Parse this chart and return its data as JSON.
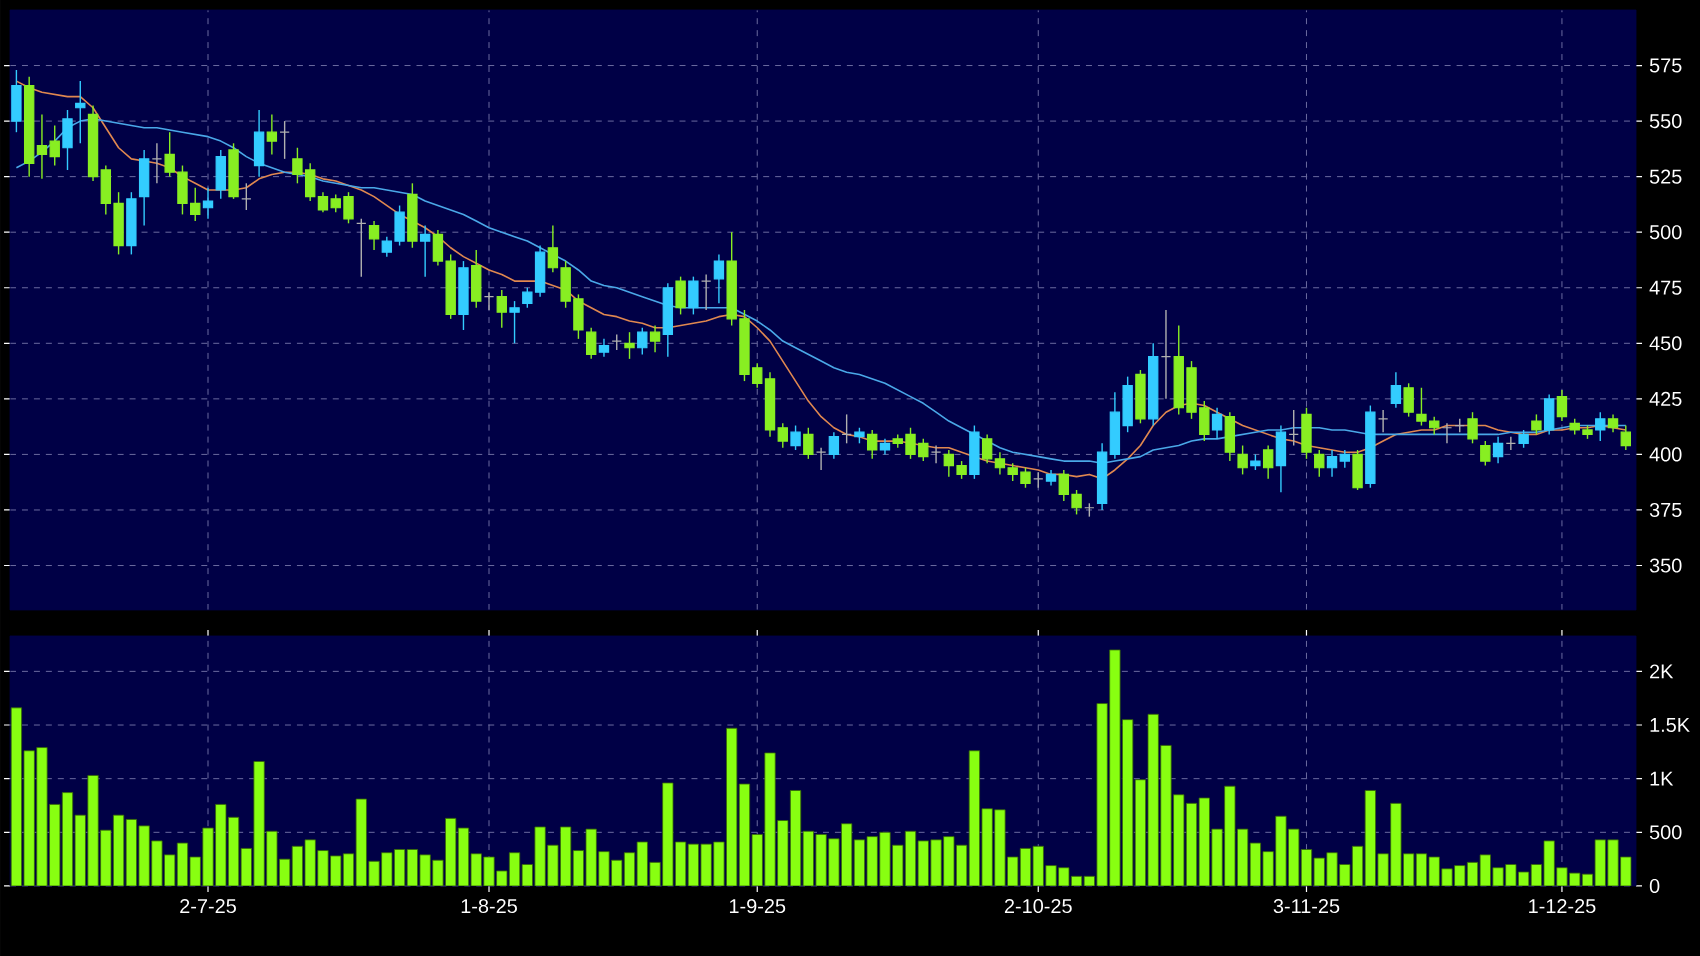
{
  "chart_data": [
    {
      "type": "candlestick",
      "tick_labels": "y",
      "grid": true,
      "ylim": [
        330,
        600
      ],
      "yticks": [
        350,
        375,
        400,
        425,
        450,
        475,
        500,
        525,
        550,
        575
      ],
      "categories": [
        null,
        null,
        null,
        null,
        null,
        null,
        null,
        null,
        null,
        null,
        null,
        null,
        null,
        null,
        null,
        null,
        null,
        null,
        null,
        null,
        null,
        null,
        null,
        null,
        null,
        null,
        null,
        null,
        null,
        null,
        null,
        null,
        null,
        null,
        null,
        null,
        null,
        null,
        null,
        null,
        null,
        null,
        null,
        null,
        null,
        null,
        null,
        null,
        null,
        null,
        null,
        null,
        null,
        null,
        null,
        null,
        null,
        null,
        null,
        null,
        null,
        null,
        null,
        null,
        null,
        null,
        null,
        null,
        null,
        null,
        null,
        null,
        null,
        null,
        null,
        null,
        null,
        null,
        null,
        null,
        null,
        null,
        null,
        null,
        null,
        null,
        null,
        null,
        null,
        null,
        null,
        null,
        null,
        null,
        null,
        null,
        null,
        null,
        null,
        null,
        null,
        null,
        null,
        null,
        null,
        null,
        null,
        null,
        null,
        null,
        null,
        null,
        null,
        null,
        null,
        null,
        null,
        null,
        null,
        null,
        null,
        null,
        null,
        null,
        null,
        null,
        null
      ],
      "ohlc": [
        [
          550,
          573,
          545,
          566
        ],
        [
          566,
          570,
          525,
          531
        ],
        [
          539,
          553,
          524,
          535
        ],
        [
          541,
          548,
          530,
          534
        ],
        [
          538,
          555,
          528,
          551
        ],
        [
          556,
          568,
          540,
          558
        ],
        [
          553,
          557,
          523,
          525
        ],
        [
          528,
          530,
          508,
          513
        ],
        [
          513,
          518,
          490,
          494
        ],
        [
          494,
          518,
          490,
          515
        ],
        [
          516,
          537,
          503,
          533
        ],
        [
          533,
          540,
          522,
          533
        ],
        [
          535,
          545,
          525,
          527
        ],
        [
          527,
          530,
          508,
          513
        ],
        [
          513,
          520,
          505,
          508
        ],
        [
          511,
          520,
          506,
          514
        ],
        [
          519,
          537,
          515,
          534
        ],
        [
          537,
          540,
          515,
          516
        ],
        [
          515,
          522,
          510,
          515
        ],
        [
          530,
          555,
          525,
          545
        ],
        [
          545,
          553,
          535,
          541
        ],
        [
          545,
          550,
          533,
          545
        ],
        [
          533,
          538,
          522,
          526
        ],
        [
          528,
          531,
          514,
          516
        ],
        [
          516,
          518,
          509,
          510
        ],
        [
          515,
          517,
          509,
          511
        ],
        [
          516,
          518,
          504,
          506
        ],
        [
          504,
          506,
          480,
          504
        ],
        [
          503,
          505,
          492,
          497
        ],
        [
          491,
          498,
          489,
          496
        ],
        [
          496,
          512,
          494,
          509
        ],
        [
          517,
          522,
          493,
          496
        ],
        [
          496,
          503,
          480,
          499
        ],
        [
          499,
          501,
          485,
          487
        ],
        [
          487,
          490,
          461,
          463
        ],
        [
          463,
          487,
          456,
          484
        ],
        [
          485,
          492,
          466,
          469
        ],
        [
          471,
          473,
          465,
          471
        ],
        [
          471,
          474,
          457,
          464
        ],
        [
          464,
          469,
          450,
          466
        ],
        [
          468,
          475,
          466,
          473
        ],
        [
          473,
          494,
          471,
          491
        ],
        [
          493,
          503,
          482,
          484
        ],
        [
          484,
          487,
          466,
          469
        ],
        [
          470,
          472,
          452,
          456
        ],
        [
          455,
          457,
          443,
          445
        ],
        [
          446,
          452,
          444,
          449
        ],
        [
          451,
          454,
          447,
          451
        ],
        [
          450,
          455,
          443,
          448
        ],
        [
          448,
          457,
          445,
          455
        ],
        [
          455,
          458,
          446,
          451
        ],
        [
          454,
          477,
          444,
          475
        ],
        [
          478,
          480,
          463,
          466
        ],
        [
          466,
          480,
          463,
          478
        ],
        [
          478,
          481,
          465,
          478
        ],
        [
          479,
          490,
          468,
          487
        ],
        [
          487,
          500,
          458,
          461
        ],
        [
          461,
          465,
          433,
          436
        ],
        [
          439,
          441,
          430,
          432
        ],
        [
          434,
          437,
          408,
          411
        ],
        [
          412,
          414,
          403,
          406
        ],
        [
          404,
          413,
          402,
          410
        ],
        [
          409,
          412,
          398,
          400
        ],
        [
          401,
          403,
          393,
          401
        ],
        [
          400,
          410,
          398,
          408
        ],
        [
          409,
          418,
          405,
          409
        ],
        [
          408,
          412,
          405,
          410
        ],
        [
          409,
          411,
          398,
          402
        ],
        [
          402,
          407,
          400,
          405
        ],
        [
          407,
          409,
          403,
          405
        ],
        [
          409,
          412,
          398,
          400
        ],
        [
          405,
          407,
          397,
          399
        ],
        [
          401,
          404,
          396,
          401
        ],
        [
          400,
          402,
          390,
          395
        ],
        [
          395,
          397,
          389,
          391
        ],
        [
          391,
          413,
          389,
          410
        ],
        [
          407,
          409,
          396,
          398
        ],
        [
          398,
          401,
          391,
          394
        ],
        [
          394,
          396,
          388,
          391
        ],
        [
          392,
          394,
          385,
          387
        ],
        [
          389,
          392,
          385,
          389
        ],
        [
          388,
          393,
          386,
          391
        ],
        [
          391,
          393,
          379,
          382
        ],
        [
          382,
          384,
          373,
          376
        ],
        [
          376,
          378,
          372,
          376
        ],
        [
          378,
          405,
          375,
          401
        ],
        [
          400,
          428,
          398,
          419
        ],
        [
          413,
          435,
          410,
          431
        ],
        [
          436,
          438,
          414,
          416
        ],
        [
          416,
          450,
          413,
          444
        ],
        [
          444,
          465,
          425,
          444
        ],
        [
          444,
          458,
          418,
          421
        ],
        [
          439,
          442,
          416,
          419
        ],
        [
          421,
          424,
          406,
          409
        ],
        [
          411,
          421,
          407,
          418
        ],
        [
          417,
          419,
          397,
          401
        ],
        [
          400,
          404,
          391,
          394
        ],
        [
          395,
          400,
          393,
          397
        ],
        [
          402,
          404,
          389,
          394
        ],
        [
          395,
          413,
          383,
          410
        ],
        [
          409,
          420,
          404,
          409
        ],
        [
          418,
          421,
          398,
          401
        ],
        [
          400,
          402,
          390,
          394
        ],
        [
          394,
          402,
          390,
          399
        ],
        [
          397,
          402,
          394,
          400
        ],
        [
          400,
          402,
          384,
          385
        ],
        [
          387,
          422,
          385,
          419
        ],
        [
          416,
          420,
          410,
          416
        ],
        [
          423,
          437,
          421,
          431
        ],
        [
          430,
          432,
          417,
          419
        ],
        [
          418,
          430,
          413,
          415
        ],
        [
          415,
          417,
          409,
          412
        ],
        [
          412,
          414,
          405,
          412
        ],
        [
          413,
          416,
          410,
          413
        ],
        [
          416,
          419,
          405,
          407
        ],
        [
          404,
          406,
          395,
          397
        ],
        [
          399,
          408,
          396,
          405
        ],
        [
          405,
          408,
          402,
          405
        ],
        [
          405,
          411,
          403,
          409
        ],
        [
          415,
          418,
          409,
          411
        ],
        [
          411,
          427,
          409,
          425
        ],
        [
          426,
          429,
          415,
          417
        ],
        [
          414,
          416,
          409,
          411
        ],
        [
          411,
          413,
          407,
          409
        ],
        [
          411,
          419,
          406,
          416
        ],
        [
          416,
          418,
          410,
          412
        ],
        [
          410,
          413,
          402,
          404
        ]
      ],
      "colors": [
        "#33ccff",
        "#88ee22",
        "#88ee22",
        "#88ee22",
        "#33ccff",
        "#33ccff",
        "#88ee22",
        "#88ee22",
        "#88ee22",
        "#33ccff",
        "#33ccff",
        "#b0b0b0",
        "#88ee22",
        "#88ee22",
        "#88ee22",
        "#33ccff",
        "#33ccff",
        "#88ee22",
        "#b0b0b0",
        "#33ccff",
        "#88ee22",
        "#b0b0b0",
        "#88ee22",
        "#88ee22",
        "#88ee22",
        "#88ee22",
        "#88ee22",
        "#b0b0b0",
        "#88ee22",
        "#33ccff",
        "#33ccff",
        "#88ee22",
        "#33ccff",
        "#88ee22",
        "#88ee22",
        "#33ccff",
        "#88ee22",
        "#b0b0b0",
        "#88ee22",
        "#33ccff",
        "#33ccff",
        "#33ccff",
        "#88ee22",
        "#88ee22",
        "#88ee22",
        "#88ee22",
        "#33ccff",
        "#b0b0b0",
        "#88ee22",
        "#33ccff",
        "#88ee22",
        "#33ccff",
        "#88ee22",
        "#33ccff",
        "#b0b0b0",
        "#33ccff",
        "#88ee22",
        "#88ee22",
        "#88ee22",
        "#88ee22",
        "#88ee22",
        "#33ccff",
        "#88ee22",
        "#b0b0b0",
        "#33ccff",
        "#b0b0b0",
        "#33ccff",
        "#88ee22",
        "#33ccff",
        "#88ee22",
        "#88ee22",
        "#88ee22",
        "#b0b0b0",
        "#88ee22",
        "#88ee22",
        "#33ccff",
        "#88ee22",
        "#88ee22",
        "#88ee22",
        "#88ee22",
        "#b0b0b0",
        "#33ccff",
        "#88ee22",
        "#88ee22",
        "#b0b0b0",
        "#33ccff",
        "#33ccff",
        "#33ccff",
        "#88ee22",
        "#33ccff",
        "#b0b0b0",
        "#88ee22",
        "#88ee22",
        "#88ee22",
        "#33ccff",
        "#88ee22",
        "#88ee22",
        "#33ccff",
        "#88ee22",
        "#33ccff",
        "#b0b0b0",
        "#88ee22",
        "#88ee22",
        "#33ccff",
        "#33ccff",
        "#88ee22",
        "#33ccff",
        "#b0b0b0",
        "#33ccff",
        "#88ee22",
        "#88ee22",
        "#88ee22",
        "#b0b0b0",
        "#b0b0b0",
        "#88ee22",
        "#88ee22",
        "#33ccff",
        "#b0b0b0",
        "#33ccff",
        "#88ee22",
        "#33ccff",
        "#88ee22",
        "#88ee22",
        "#88ee22",
        "#33ccff",
        "#88ee22",
        "#88ee22"
      ],
      "series": [
        {
          "type": "line",
          "color": "#e08850",
          "values": [
            568,
            565,
            563,
            562,
            561,
            561,
            556,
            547,
            538,
            533,
            532,
            531,
            529,
            525,
            522,
            519,
            519,
            519,
            520,
            524,
            526,
            527,
            527,
            526,
            524,
            523,
            521,
            519,
            516,
            512,
            508,
            505,
            502,
            498,
            493,
            489,
            486,
            483,
            481,
            478,
            478,
            478,
            476,
            474,
            469,
            466,
            463,
            462,
            460,
            459,
            457,
            457,
            458,
            459,
            460,
            462,
            463,
            462,
            457,
            451,
            442,
            433,
            424,
            417,
            412,
            409,
            408,
            406,
            406,
            406,
            405,
            404,
            403,
            403,
            401,
            399,
            397,
            396,
            395,
            394,
            393,
            391,
            391,
            390,
            391,
            389,
            393,
            398,
            404,
            413,
            419,
            422,
            423,
            422,
            419,
            416,
            413,
            411,
            409,
            407,
            406,
            404,
            403,
            402,
            401,
            401,
            403,
            406,
            409,
            410,
            411,
            411,
            413,
            413,
            413,
            413,
            411,
            410,
            409,
            409,
            411,
            411,
            412,
            412,
            413,
            412,
            411
          ]
        },
        {
          "type": "line",
          "color": "#4aa8e8",
          "values": [
            529,
            532,
            536,
            541,
            547,
            550,
            551,
            550,
            549,
            548,
            547,
            547,
            546,
            545,
            544,
            543,
            541,
            538,
            534,
            531,
            529,
            527,
            526,
            525,
            523,
            522,
            521,
            520,
            520,
            519,
            518,
            517,
            514,
            512,
            510,
            508,
            505,
            502,
            500,
            498,
            496,
            493,
            490,
            487,
            483,
            478,
            476,
            475,
            473,
            471,
            469,
            467,
            466,
            466,
            466,
            466,
            466,
            463,
            460,
            456,
            451,
            448,
            445,
            442,
            439,
            437,
            436,
            434,
            432,
            429,
            426,
            423,
            419,
            415,
            412,
            409,
            406,
            403,
            401,
            400,
            399,
            398,
            397,
            397,
            397,
            396,
            397,
            398,
            399,
            402,
            403,
            404,
            406,
            407,
            407,
            408,
            409,
            410,
            411,
            411,
            412,
            412,
            412,
            411,
            411,
            410,
            409,
            409,
            409,
            409,
            409,
            409,
            409,
            409,
            409,
            409,
            409,
            410,
            410,
            410,
            411,
            412,
            413,
            413,
            413,
            413,
            413
          ]
        }
      ]
    },
    {
      "type": "bar",
      "grid": true,
      "color": "#88ff11",
      "ylim": [
        0,
        2330
      ],
      "yticks": [
        0,
        500,
        {
          "value": 1000,
          "label": "1K"
        },
        {
          "value": 1500,
          "label": "1.5K"
        },
        {
          "value": 2000,
          "label": "2K"
        }
      ],
      "categories": [
        null,
        null,
        null,
        null,
        null,
        null,
        null,
        null,
        null,
        null,
        null,
        null,
        null,
        null,
        null,
        "2-7-25",
        null,
        null,
        null,
        null,
        null,
        null,
        null,
        null,
        null,
        null,
        null,
        null,
        null,
        null,
        null,
        null,
        null,
        null,
        null,
        null,
        null,
        "1-8-25",
        null,
        null,
        null,
        null,
        null,
        null,
        null,
        null,
        null,
        null,
        null,
        null,
        null,
        null,
        null,
        null,
        null,
        null,
        null,
        null,
        "1-9-25",
        null,
        null,
        null,
        null,
        null,
        null,
        null,
        null,
        null,
        null,
        null,
        null,
        null,
        null,
        null,
        null,
        null,
        null,
        null,
        null,
        null,
        "2-10-25",
        null,
        null,
        null,
        null,
        null,
        null,
        null,
        null,
        null,
        null,
        null,
        null,
        null,
        null,
        null,
        null,
        null,
        null,
        null,
        null,
        "3-11-25",
        null,
        null,
        null,
        null,
        null,
        null,
        null,
        null,
        null,
        null,
        null,
        null,
        null,
        null,
        null,
        null,
        null,
        null,
        null,
        "1-12-25",
        null,
        null,
        null,
        null,
        null
      ],
      "values": [
        1660,
        1260,
        1290,
        760,
        870,
        660,
        1030,
        520,
        660,
        620,
        560,
        420,
        290,
        400,
        270,
        540,
        760,
        640,
        350,
        1160,
        510,
        250,
        370,
        430,
        330,
        280,
        300,
        810,
        230,
        310,
        340,
        340,
        290,
        240,
        630,
        540,
        300,
        270,
        140,
        310,
        200,
        550,
        380,
        550,
        330,
        530,
        320,
        240,
        310,
        410,
        220,
        960,
        410,
        390,
        390,
        410,
        1470,
        950,
        480,
        1240,
        610,
        890,
        510,
        480,
        440,
        580,
        430,
        460,
        500,
        380,
        510,
        420,
        430,
        460,
        380,
        1260,
        720,
        710,
        270,
        350,
        370,
        190,
        170,
        90,
        90,
        1700,
        2200,
        1550,
        990,
        1600,
        1310,
        850,
        770,
        820,
        530,
        930,
        530,
        400,
        320,
        650,
        530,
        340,
        260,
        310,
        200,
        370,
        890,
        300,
        770,
        300,
        300,
        270,
        160,
        190,
        220,
        290,
        170,
        200,
        130,
        200,
        420,
        170,
        120,
        110,
        430,
        430,
        270
      ]
    }
  ]
}
